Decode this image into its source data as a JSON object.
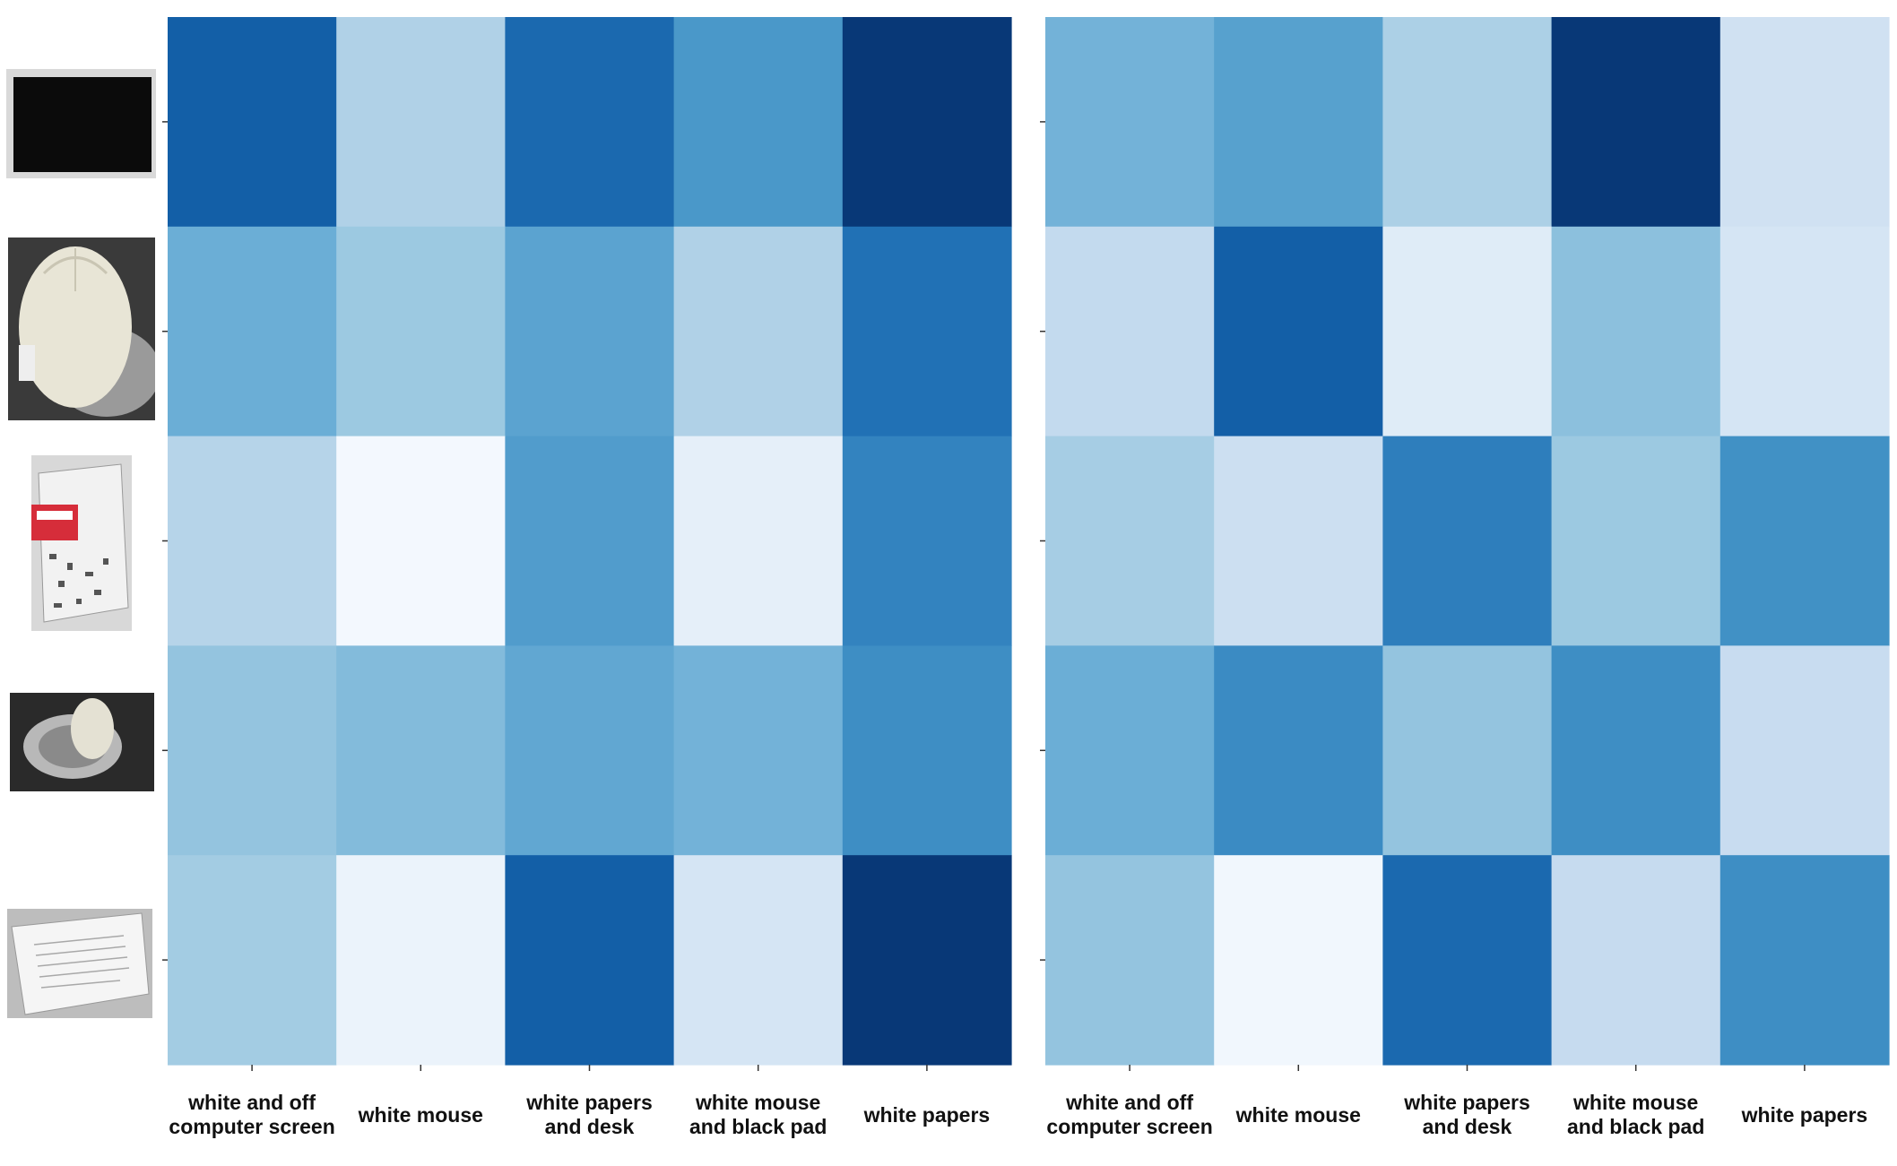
{
  "chart_data": [
    {
      "type": "heatmap",
      "colormap": "Blues",
      "x_labels": [
        "white and off computer screen",
        "white mouse",
        "white papers and desk",
        "white mouse and black pad",
        "white papers"
      ],
      "x_label_lines": [
        [
          "white and off",
          "computer screen"
        ],
        [
          "white mouse"
        ],
        [
          "white papers",
          "and desk"
        ],
        [
          "white mouse",
          "and black pad"
        ],
        [
          "white papers"
        ]
      ],
      "y_labels": [],
      "row_images": [
        "black computer screen",
        "white mouse",
        "papers and red box on desk",
        "mouse on dark pad",
        "white papers"
      ],
      "values": [
        [
          0.82,
          0.32,
          0.78,
          0.6,
          0.97
        ],
        [
          0.5,
          0.38,
          0.55,
          0.32,
          0.75
        ],
        [
          0.3,
          0.02,
          0.58,
          0.09,
          0.68
        ],
        [
          0.4,
          0.44,
          0.53,
          0.48,
          0.64
        ],
        [
          0.36,
          0.06,
          0.82,
          0.17,
          0.97
        ]
      ],
      "legend": "none",
      "grid": false
    },
    {
      "type": "heatmap",
      "colormap": "Blues",
      "x_labels": [
        "white and off computer screen",
        "white mouse",
        "white papers and desk",
        "white mouse and black pad",
        "white papers"
      ],
      "x_label_lines": [
        [
          "white and off",
          "computer screen"
        ],
        [
          "white mouse"
        ],
        [
          "white papers",
          "and desk"
        ],
        [
          "white mouse",
          "and black pad"
        ],
        [
          "white papers"
        ]
      ],
      "y_labels": [],
      "values": [
        [
          0.48,
          0.56,
          0.33,
          0.97,
          0.2
        ],
        [
          0.26,
          0.82,
          0.12,
          0.42,
          0.17
        ],
        [
          0.35,
          0.22,
          0.7,
          0.38,
          0.63
        ],
        [
          0.5,
          0.65,
          0.4,
          0.64,
          0.24
        ],
        [
          0.4,
          0.03,
          0.78,
          0.25,
          0.64
        ]
      ],
      "legend": "none",
      "grid": false
    }
  ]
}
